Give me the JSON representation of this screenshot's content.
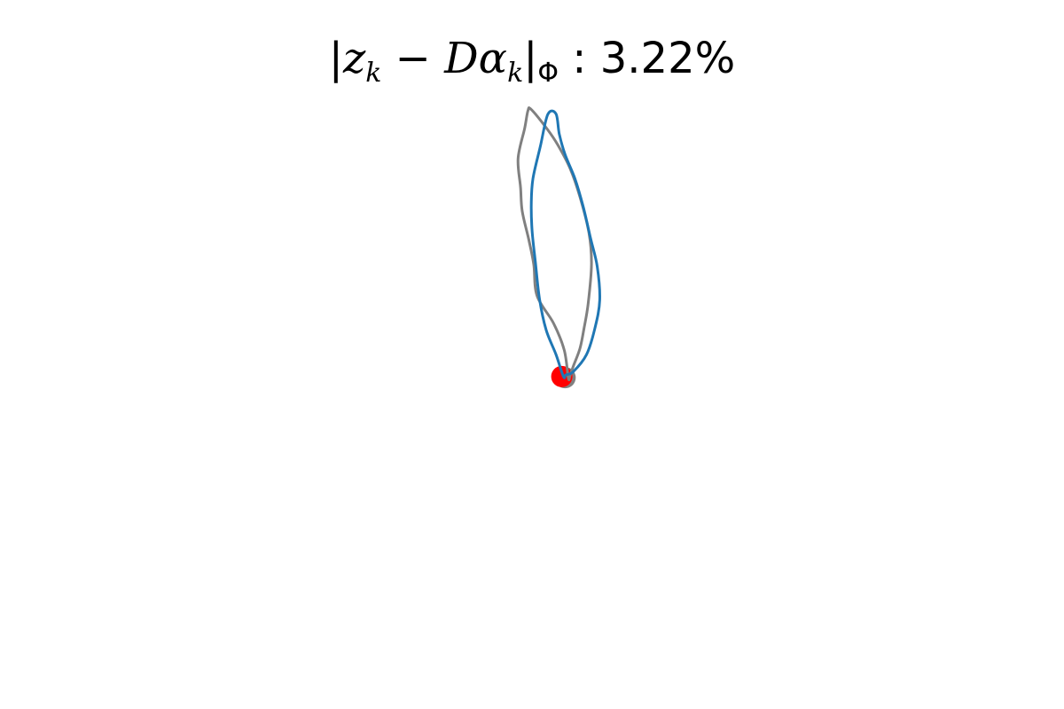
{
  "chart_data": {
    "type": "line",
    "title": "|z_k − Dα_k|_Φ : 3.22%",
    "title_parts": {
      "bar_open": "|",
      "z": "z",
      "k1": "k",
      "minus": " − ",
      "D": "D",
      "alpha": "α",
      "k2": "k",
      "bar_close": "|",
      "phi": "Φ",
      "value": " : 3.22%"
    },
    "axes_visible": false,
    "grid": false,
    "xlim": [
      0,
      10
    ],
    "ylim": [
      0,
      10
    ],
    "colors": {
      "original": "#808080",
      "reconstruction": "#1f77b4",
      "start_marker": "#ff0000",
      "start_marker_original": "#808080"
    },
    "series": [
      {
        "key": "original",
        "points": [
          [
            5.28,
            4.73
          ],
          [
            5.23,
            5.24
          ],
          [
            5.1,
            5.73
          ],
          [
            4.9,
            6.23
          ],
          [
            4.86,
            6.8
          ],
          [
            4.8,
            7.25
          ],
          [
            4.72,
            7.77
          ],
          [
            4.7,
            8.2
          ],
          [
            4.67,
            8.73
          ],
          [
            4.75,
            9.28
          ],
          [
            4.79,
            9.6
          ],
          [
            4.83,
            9.62
          ],
          [
            5.02,
            9.27
          ],
          [
            5.15,
            8.98
          ],
          [
            5.3,
            8.55
          ],
          [
            5.42,
            8.03
          ],
          [
            5.53,
            7.37
          ],
          [
            5.56,
            6.8
          ],
          [
            5.52,
            6.09
          ],
          [
            5.47,
            5.64
          ],
          [
            5.42,
            5.27
          ],
          [
            5.34,
            4.95
          ],
          [
            5.3,
            4.78
          ]
        ]
      },
      {
        "key": "reconstruction",
        "points": [
          [
            5.22,
            4.76
          ],
          [
            5.13,
            5.16
          ],
          [
            5.01,
            5.61
          ],
          [
            4.93,
            6.17
          ],
          [
            4.88,
            6.84
          ],
          [
            4.84,
            7.41
          ],
          [
            4.83,
            7.9
          ],
          [
            4.85,
            8.36
          ],
          [
            4.94,
            8.95
          ],
          [
            5.03,
            9.53
          ],
          [
            5.13,
            9.54
          ],
          [
            5.17,
            9.17
          ],
          [
            5.24,
            8.8
          ],
          [
            5.36,
            8.36
          ],
          [
            5.46,
            7.85
          ],
          [
            5.55,
            7.27
          ],
          [
            5.63,
            6.76
          ],
          [
            5.66,
            6.15
          ],
          [
            5.6,
            5.63
          ],
          [
            5.5,
            5.16
          ],
          [
            5.34,
            4.85
          ],
          [
            5.25,
            4.79
          ]
        ]
      }
    ],
    "start_points": {
      "original": [
        5.24,
        4.74
      ],
      "reconstruction": [
        5.2,
        4.76
      ]
    }
  }
}
